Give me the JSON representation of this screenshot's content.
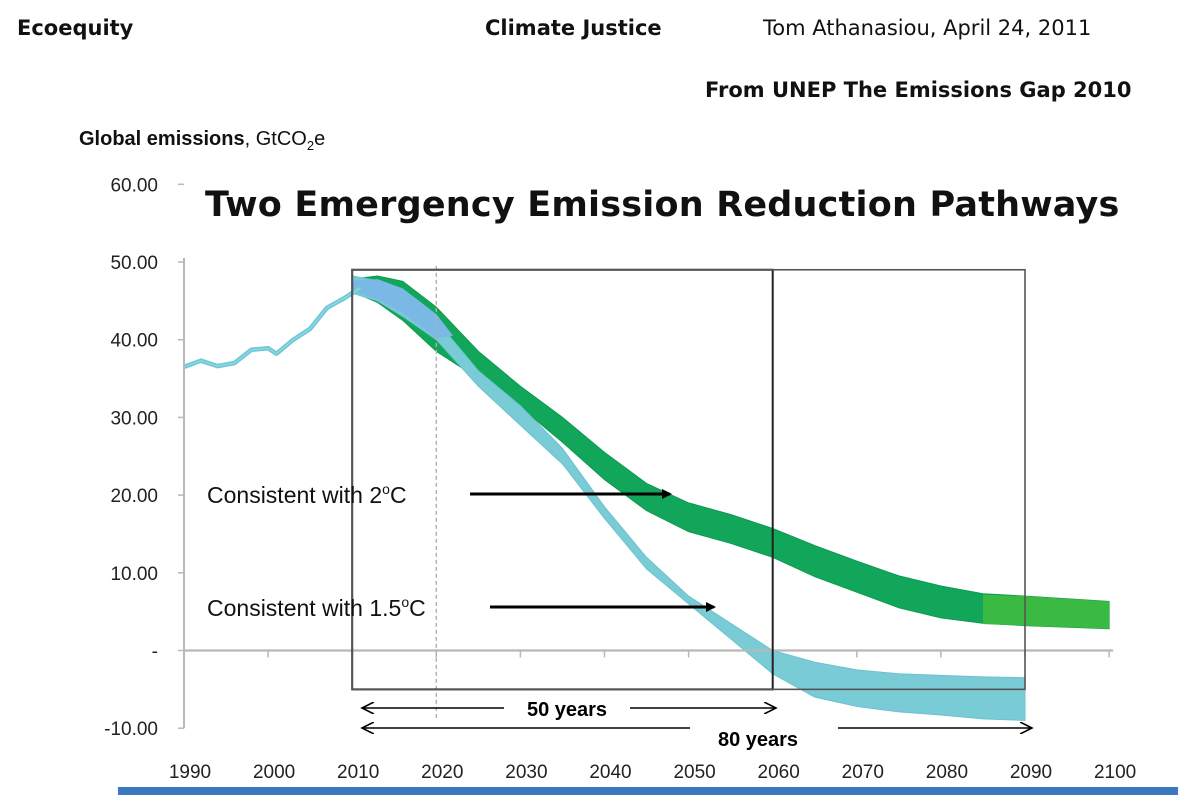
{
  "header": {
    "left": "Ecoequity",
    "center": "Climate Justice",
    "right": "Tom Athanasiou, April 24, 2011",
    "source": "From UNEP The Emissions Gap 2010"
  },
  "chart_data": {
    "type": "area",
    "title": "Two Emergency Emission Reduction Pathways",
    "ylabel_bold": "Global emissions",
    "ylabel_unit": ", GtCO",
    "ylabel_sub": "2",
    "ylabel_tail": "e",
    "xlabel": "",
    "ylim": [
      -10,
      60
    ],
    "xlim": [
      1990,
      2100
    ],
    "y_ticks": [
      "60.00",
      "50.00",
      "40.00",
      "30.00",
      "20.00",
      "10.00",
      "-",
      "-10.00"
    ],
    "y_tick_values": [
      60,
      50,
      40,
      30,
      20,
      10,
      0,
      -10
    ],
    "x_ticks": [
      "1990",
      "2000",
      "2010",
      "2020",
      "2030",
      "2040",
      "2050",
      "2060",
      "2070",
      "2080",
      "2090",
      "2100"
    ],
    "x_tick_values": [
      1990,
      2000,
      2010,
      2020,
      2030,
      2040,
      2050,
      2060,
      2070,
      2080,
      2090,
      2100
    ],
    "grid": false,
    "colors": {
      "two_c": "#12a65a",
      "two_c_ext": "#3fbd3f",
      "one_five_c": "#79ccd6",
      "overlap": "#7ab8e6",
      "history": "#6cc7d6",
      "bottom_bar": "#3c78bf"
    },
    "historical": [
      [
        1990,
        36.5
      ],
      [
        1992,
        37.3
      ],
      [
        1994,
        36.6
      ],
      [
        1996,
        37.0
      ],
      [
        1998,
        38.7
      ],
      [
        2000,
        38.9
      ],
      [
        2001,
        38.2
      ],
      [
        2003,
        40.0
      ],
      [
        2005,
        41.4
      ],
      [
        2007,
        44.1
      ],
      [
        2009,
        45.3
      ],
      [
        2011,
        46.7
      ]
    ],
    "series": [
      {
        "name": "Consistent with 2oC",
        "upper": [
          [
            2010,
            47.8
          ],
          [
            2013,
            48.2
          ],
          [
            2016,
            47.5
          ],
          [
            2020,
            44.2
          ],
          [
            2025,
            38.5
          ],
          [
            2030,
            34.0
          ],
          [
            2035,
            30.0
          ],
          [
            2040,
            25.5
          ],
          [
            2045,
            21.5
          ],
          [
            2050,
            19.0
          ],
          [
            2055,
            17.5
          ],
          [
            2060,
            15.7
          ],
          [
            2065,
            13.5
          ],
          [
            2070,
            11.5
          ],
          [
            2075,
            9.6
          ],
          [
            2080,
            8.3
          ],
          [
            2085,
            7.3
          ],
          [
            2090,
            7.0
          ],
          [
            2100,
            6.3
          ]
        ],
        "lower": [
          [
            2100,
            2.8
          ],
          [
            2090,
            3.2
          ],
          [
            2085,
            3.5
          ],
          [
            2080,
            4.2
          ],
          [
            2075,
            5.5
          ],
          [
            2070,
            7.5
          ],
          [
            2065,
            9.5
          ],
          [
            2060,
            12.0
          ],
          [
            2055,
            13.8
          ],
          [
            2050,
            15.3
          ],
          [
            2045,
            18.0
          ],
          [
            2040,
            22.0
          ],
          [
            2035,
            26.8
          ],
          [
            2030,
            31.3
          ],
          [
            2025,
            35.0
          ],
          [
            2020,
            38.5
          ],
          [
            2016,
            42.5
          ],
          [
            2013,
            44.8
          ],
          [
            2010,
            46.2
          ]
        ]
      },
      {
        "name": "Consistent with 1.5oC",
        "upper": [
          [
            2010,
            48.2
          ],
          [
            2013,
            47.6
          ],
          [
            2016,
            45.5
          ],
          [
            2020,
            42.5
          ],
          [
            2025,
            36.0
          ],
          [
            2030,
            31.5
          ],
          [
            2035,
            26.0
          ],
          [
            2040,
            18.5
          ],
          [
            2045,
            12.0
          ],
          [
            2050,
            7.0
          ],
          [
            2055,
            3.5
          ],
          [
            2060,
            0.0
          ],
          [
            2065,
            -1.5
          ],
          [
            2070,
            -2.5
          ],
          [
            2075,
            -3.0
          ],
          [
            2080,
            -3.2
          ],
          [
            2085,
            -3.4
          ],
          [
            2090,
            -3.5
          ]
        ],
        "lower": [
          [
            2090,
            -9.0
          ],
          [
            2085,
            -8.8
          ],
          [
            2080,
            -8.3
          ],
          [
            2075,
            -7.9
          ],
          [
            2070,
            -7.2
          ],
          [
            2065,
            -6.0
          ],
          [
            2060,
            -3.0
          ],
          [
            2055,
            1.5
          ],
          [
            2050,
            6.0
          ],
          [
            2045,
            10.5
          ],
          [
            2040,
            17.0
          ],
          [
            2035,
            24.0
          ],
          [
            2030,
            29.0
          ],
          [
            2025,
            34.0
          ],
          [
            2020,
            40.0
          ],
          [
            2016,
            43.0
          ],
          [
            2013,
            45.0
          ],
          [
            2010,
            46.0
          ]
        ]
      }
    ],
    "annotations": {
      "two_c_text": "Consistent with 2",
      "two_c_sup": "o",
      "two_c_tail": "C",
      "one_five_text": "Consistent with 1.5",
      "one_five_sup": "o",
      "one_five_tail": "C",
      "span_50": "50 years",
      "span_80": "80 years"
    },
    "boxes": [
      [
        2010,
        2060,
        -5,
        49
      ],
      [
        2010,
        2090,
        -5,
        49
      ]
    ],
    "reference_line_x": 2020
  }
}
